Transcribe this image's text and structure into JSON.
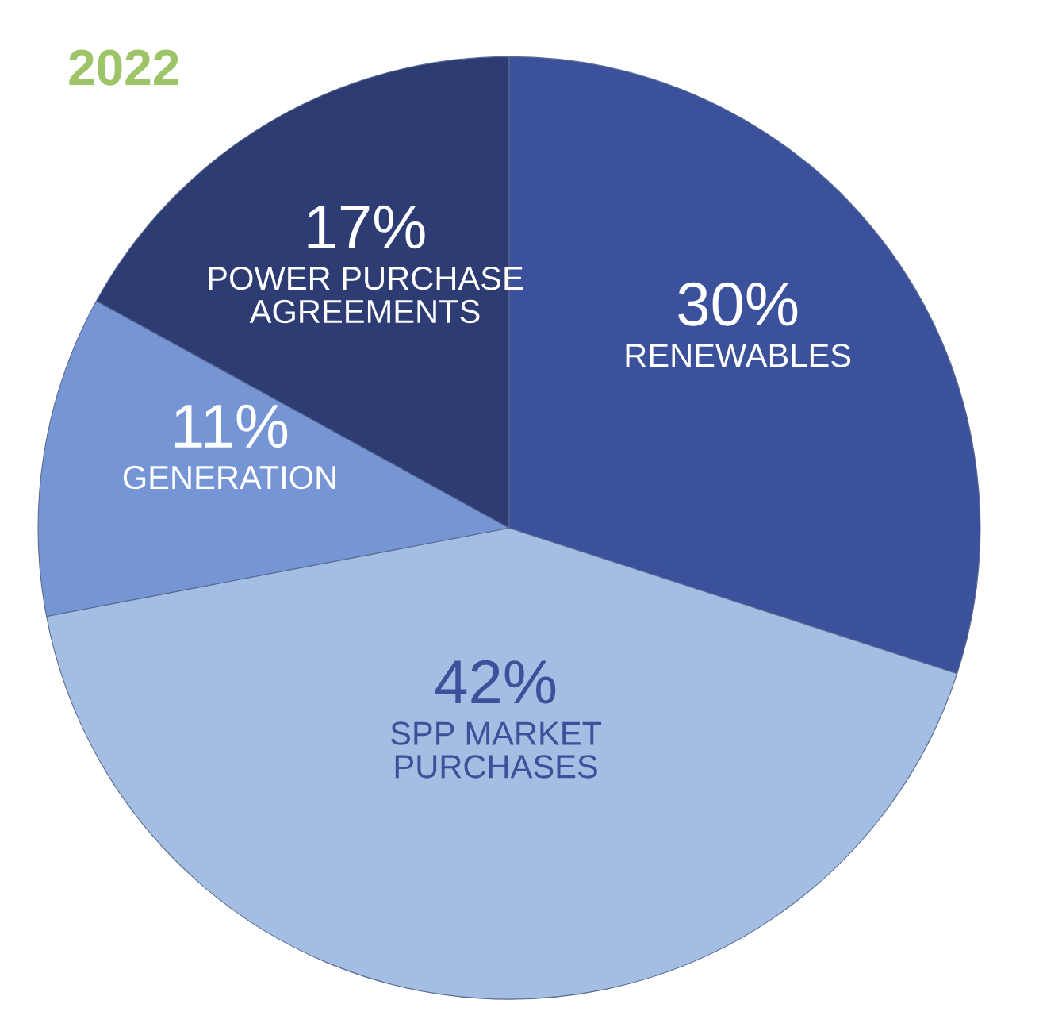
{
  "chart_data": {
    "type": "pie",
    "title": "2022",
    "categories": [
      "RENEWABLES",
      "SPP MARKET PURCHASES",
      "GENERATION",
      "POWER PURCHASE AGREEMENTS"
    ],
    "values": [
      30,
      42,
      11,
      17
    ],
    "colors": [
      "#3b519b",
      "#a4bde2",
      "#7595d5",
      "#2e3c74"
    ],
    "value_labels": [
      "30%",
      "42%",
      "11%",
      "17%"
    ],
    "legend": false
  }
}
